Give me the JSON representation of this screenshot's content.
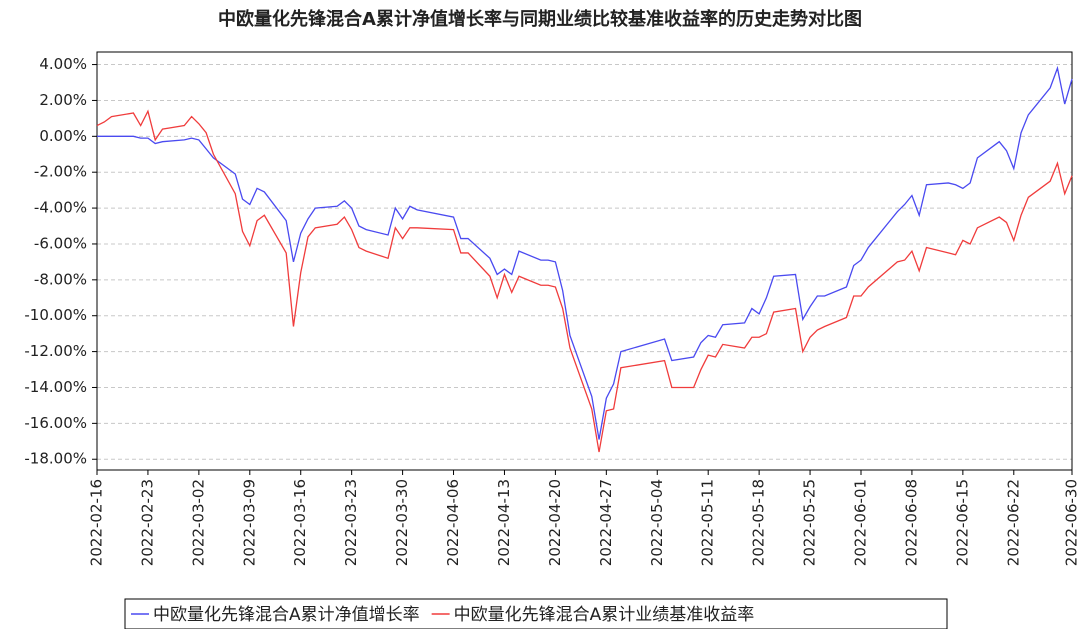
{
  "chart_data": {
    "type": "line",
    "title": "中欧量化先锋混合A累计净值增长率与同期业绩比较基准收益率的历史走势对比图",
    "x": [
      "2022-02-16",
      "2022-02-17",
      "2022-02-18",
      "2022-02-21",
      "2022-02-22",
      "2022-02-23",
      "2022-02-24",
      "2022-02-25",
      "2022-02-28",
      "2022-03-01",
      "2022-03-02",
      "2022-03-03",
      "2022-03-04",
      "2022-03-07",
      "2022-03-08",
      "2022-03-09",
      "2022-03-10",
      "2022-03-11",
      "2022-03-14",
      "2022-03-15",
      "2022-03-16",
      "2022-03-17",
      "2022-03-18",
      "2022-03-21",
      "2022-03-22",
      "2022-03-23",
      "2022-03-24",
      "2022-03-25",
      "2022-03-28",
      "2022-03-29",
      "2022-03-30",
      "2022-03-31",
      "2022-04-01",
      "2022-04-06",
      "2022-04-07",
      "2022-04-08",
      "2022-04-11",
      "2022-04-12",
      "2022-04-13",
      "2022-04-14",
      "2022-04-15",
      "2022-04-18",
      "2022-04-19",
      "2022-04-20",
      "2022-04-21",
      "2022-04-22",
      "2022-04-25",
      "2022-04-26",
      "2022-04-27",
      "2022-04-28",
      "2022-04-29",
      "2022-05-05",
      "2022-05-06",
      "2022-05-09",
      "2022-05-10",
      "2022-05-11",
      "2022-05-12",
      "2022-05-13",
      "2022-05-16",
      "2022-05-17",
      "2022-05-18",
      "2022-05-19",
      "2022-05-20",
      "2022-05-23",
      "2022-05-24",
      "2022-05-25",
      "2022-05-26",
      "2022-05-27",
      "2022-05-30",
      "2022-05-31",
      "2022-06-01",
      "2022-06-02",
      "2022-06-06",
      "2022-06-07",
      "2022-06-08",
      "2022-06-09",
      "2022-06-10",
      "2022-06-13",
      "2022-06-14",
      "2022-06-15",
      "2022-06-16",
      "2022-06-17",
      "2022-06-20",
      "2022-06-21",
      "2022-06-22",
      "2022-06-23",
      "2022-06-24",
      "2022-06-27",
      "2022-06-28",
      "2022-06-29",
      "2022-06-30"
    ],
    "series": [
      {
        "name": "中欧量化先锋混合A累计净值增长率",
        "color": "#4a4af0",
        "values": [
          0,
          0,
          0,
          0,
          -0.1,
          -0.1,
          -0.4,
          -0.3,
          -0.2,
          -0.1,
          -0.2,
          -0.7,
          -1.2,
          -2.1,
          -3.5,
          -3.8,
          -2.9,
          -3.1,
          -4.7,
          -7.0,
          -5.4,
          -4.6,
          -4.0,
          -3.9,
          -3.6,
          -4.0,
          -5.0,
          -5.2,
          -5.5,
          -4.0,
          -4.6,
          -3.9,
          -4.1,
          -4.5,
          -5.7,
          -5.7,
          -6.8,
          -7.7,
          -7.4,
          -7.7,
          -6.4,
          -6.9,
          -6.9,
          -7.0,
          -8.6,
          -11.1,
          -14.5,
          -16.9,
          -14.6,
          -13.8,
          -12.0,
          -11.3,
          -12.5,
          -12.3,
          -11.5,
          -11.1,
          -11.2,
          -10.5,
          -10.4,
          -9.6,
          -9.9,
          -9.0,
          -7.8,
          -7.7,
          -10.2,
          -9.5,
          -8.9,
          -8.9,
          -8.4,
          -7.2,
          -6.9,
          -6.2,
          -4.2,
          -3.8,
          -3.3,
          -4.4,
          -2.7,
          -2.6,
          -2.7,
          -2.9,
          -2.6,
          -1.2,
          -0.3,
          -0.8,
          -1.8,
          0.2,
          1.2,
          2.7,
          3.8,
          1.8,
          3.2
        ]
      },
      {
        "name": "中欧量化先锋混合A累计业绩基准收益率",
        "color": "#f03c3c",
        "values": [
          0.6,
          0.8,
          1.1,
          1.3,
          0.6,
          1.4,
          -0.2,
          0.4,
          0.6,
          1.1,
          0.7,
          0.2,
          -1.0,
          -3.2,
          -5.3,
          -6.1,
          -4.7,
          -4.4,
          -6.5,
          -10.6,
          -7.6,
          -5.6,
          -5.1,
          -4.9,
          -4.5,
          -5.2,
          -6.2,
          -6.4,
          -6.8,
          -5.1,
          -5.7,
          -5.1,
          -5.1,
          -5.2,
          -6.5,
          -6.5,
          -7.8,
          -9.0,
          -7.7,
          -8.7,
          -7.8,
          -8.3,
          -8.3,
          -8.4,
          -9.6,
          -11.8,
          -15.2,
          -17.6,
          -15.3,
          -15.2,
          -12.9,
          -12.5,
          -14.0,
          -14.0,
          -13.0,
          -12.2,
          -12.3,
          -11.6,
          -11.8,
          -11.2,
          -11.2,
          -11.0,
          -9.8,
          -9.6,
          -12.0,
          -11.2,
          -10.8,
          -10.6,
          -10.1,
          -8.9,
          -8.9,
          -8.4,
          -7.0,
          -6.9,
          -6.4,
          -7.5,
          -6.2,
          -6.5,
          -6.6,
          -5.8,
          -6.0,
          -5.1,
          -4.5,
          -4.8,
          -5.8,
          -4.4,
          -3.4,
          -2.5,
          -1.5,
          -3.2,
          -2.2
        ]
      }
    ],
    "xlim": [
      "2022-02-16",
      "2022-06-30"
    ],
    "xticks": [
      "2022-02-16",
      "2022-02-23",
      "2022-03-02",
      "2022-03-09",
      "2022-03-16",
      "2022-03-23",
      "2022-03-30",
      "2022-04-06",
      "2022-04-13",
      "2022-04-20",
      "2022-04-27",
      "2022-05-04",
      "2022-05-11",
      "2022-05-18",
      "2022-05-25",
      "2022-06-01",
      "2022-06-08",
      "2022-06-15",
      "2022-06-22",
      "2022-06-30"
    ],
    "ylim": [
      -18.6,
      4.7
    ],
    "yticks": [
      {
        "value": 4,
        "label": "4.00%"
      },
      {
        "value": 2,
        "label": "2.00%"
      },
      {
        "value": 0,
        "label": "0.00%"
      },
      {
        "value": -2,
        "label": "-2.00%"
      },
      {
        "value": -4,
        "label": "-4.00%"
      },
      {
        "value": -6,
        "label": "-6.00%"
      },
      {
        "value": -8,
        "label": "-8.00%"
      },
      {
        "value": -10,
        "label": "-10.00%"
      },
      {
        "value": -12,
        "label": "-12.00%"
      },
      {
        "value": -14,
        "label": "-14.00%"
      },
      {
        "value": -16,
        "label": "-16.00%"
      },
      {
        "value": -18,
        "label": "-18.00%"
      }
    ],
    "grid": true,
    "legend": "bottom"
  }
}
